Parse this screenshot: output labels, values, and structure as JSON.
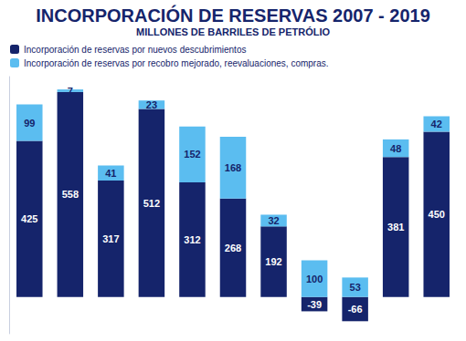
{
  "chart_data": {
    "type": "bar",
    "title": "INCORPORACIÓN DE RESERVAS 2007 - 2019",
    "subtitle": "MILLONES DE BARRILES DE PETRÓLIO",
    "categories": [
      null,
      null,
      null,
      null,
      null,
      null,
      null,
      null,
      null,
      null,
      null
    ],
    "series": [
      {
        "name": "Incorporación de reservas por nuevos descubrimientos",
        "color": "#15246b",
        "values": [
          425,
          558,
          317,
          512,
          312,
          268,
          192,
          -39,
          -66,
          381,
          450
        ]
      },
      {
        "name": "Incorporación de reservas por recobro mejorado, reevaluaciones, compras.",
        "color": "#5bbdf0",
        "values": [
          99,
          7,
          41,
          23,
          152,
          168,
          32,
          100,
          53,
          48,
          42
        ]
      }
    ],
    "stacked": true,
    "data_labels": true,
    "ylim": [
      -100,
      600
    ],
    "tick_labels": false,
    "grid": false,
    "legend": "top-left"
  }
}
